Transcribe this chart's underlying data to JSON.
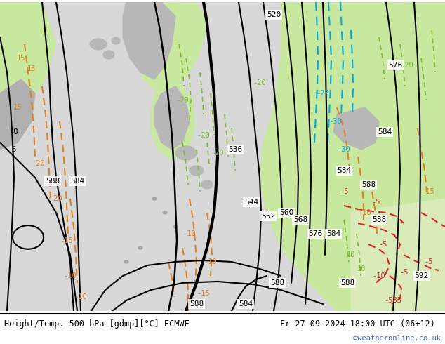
{
  "title_left": "Height/Temp. 500 hPa [gdmp][°C] ECMWF",
  "title_right": "Fr 27-09-2024 18:00 UTC (06+12)",
  "credit": "©weatheronline.co.uk",
  "credit_color": "#3366cc",
  "figsize": [
    6.34,
    4.9
  ],
  "dpi": 100
}
